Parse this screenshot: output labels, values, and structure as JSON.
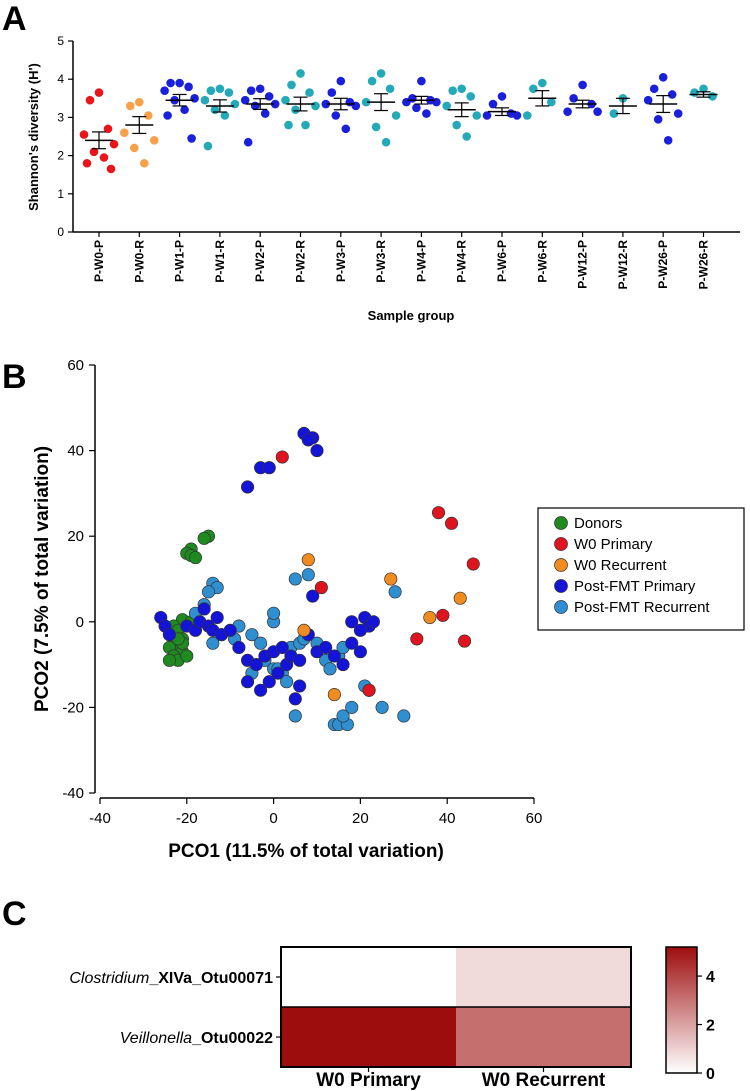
{
  "figure_labels": {
    "a": "A",
    "b": "B",
    "c": "C"
  },
  "colors": {
    "red": "#e8161b",
    "orange": "#f7a14a",
    "teal": "#23a9b8",
    "blue": "#1a1fd9",
    "green": "#1f8a1f",
    "redB": "#e0141e",
    "orangeB": "#f08c1f",
    "blueB": "#1414d9",
    "lightblueB": "#2f8fd0",
    "heatmax": "#9e0d0d"
  },
  "chart_data": [
    {
      "type": "scatter",
      "title": "A",
      "xlabel": "Sample group",
      "ylabel": "Shannon's diversity (H')",
      "ylim": [
        0,
        5
      ],
      "yticks": [
        "0",
        "1",
        "2",
        "3",
        "4",
        "5"
      ],
      "groups": [
        {
          "name": "P-W0-P",
          "color": "red",
          "mean": 2.4,
          "sem": 0.22,
          "values": [
            3.65,
            3.45,
            2.7,
            2.55,
            2.3,
            2.1,
            1.95,
            1.8,
            1.65
          ]
        },
        {
          "name": "P-W0-R",
          "color": "orange",
          "mean": 2.8,
          "sem": 0.22,
          "values": [
            3.4,
            3.3,
            3.05,
            2.6,
            2.4,
            2.2,
            1.8
          ]
        },
        {
          "name": "P-W1-P",
          "color": "blue",
          "mean": 3.45,
          "sem": 0.15,
          "values": [
            3.9,
            3.9,
            3.8,
            3.7,
            3.5,
            3.45,
            3.2,
            3.05,
            2.45
          ]
        },
        {
          "name": "P-W1-R",
          "color": "teal",
          "mean": 3.3,
          "sem": 0.16,
          "values": [
            3.75,
            3.7,
            3.65,
            3.45,
            3.35,
            3.2,
            3.05,
            2.25
          ]
        },
        {
          "name": "P-W2-P",
          "color": "blue",
          "mean": 3.35,
          "sem": 0.14,
          "values": [
            3.75,
            3.7,
            3.55,
            3.45,
            3.35,
            3.3,
            3.1,
            2.35
          ]
        },
        {
          "name": "P-W2-R",
          "color": "teal",
          "mean": 3.35,
          "sem": 0.18,
          "values": [
            4.15,
            3.85,
            3.65,
            3.45,
            3.3,
            3.2,
            2.8,
            2.8
          ]
        },
        {
          "name": "P-W3-P",
          "color": "blue",
          "mean": 3.35,
          "sem": 0.15,
          "values": [
            3.95,
            3.65,
            3.4,
            3.35,
            3.3,
            3.05,
            2.7
          ]
        },
        {
          "name": "P-W3-R",
          "color": "teal",
          "mean": 3.4,
          "sem": 0.22,
          "values": [
            4.15,
            3.95,
            3.75,
            3.4,
            3.05,
            2.75,
            2.35
          ]
        },
        {
          "name": "P-W4-P",
          "color": "blue",
          "mean": 3.45,
          "sem": 0.1,
          "values": [
            3.95,
            3.5,
            3.45,
            3.4,
            3.4,
            3.25,
            3.1
          ]
        },
        {
          "name": "P-W4-R",
          "color": "teal",
          "mean": 3.2,
          "sem": 0.18,
          "values": [
            3.75,
            3.7,
            3.55,
            3.3,
            3.05,
            2.8,
            2.5
          ]
        },
        {
          "name": "P-W6-P",
          "color": "blue",
          "mean": 3.15,
          "sem": 0.1,
          "values": [
            3.55,
            3.35,
            3.1,
            3.05,
            3.05
          ]
        },
        {
          "name": "P-W6-R",
          "color": "teal",
          "mean": 3.5,
          "sem": 0.2,
          "values": [
            3.9,
            3.75,
            3.4,
            3.05
          ]
        },
        {
          "name": "P-W12-P",
          "color": "blue",
          "mean": 3.35,
          "sem": 0.1,
          "values": [
            3.85,
            3.5,
            3.35,
            3.15,
            3.15
          ]
        },
        {
          "name": "P-W12-R",
          "color": "teal",
          "mean": 3.3,
          "sem": 0.2,
          "values": [
            3.5,
            3.1
          ]
        },
        {
          "name": "P-W26-P",
          "color": "blue",
          "mean": 3.35,
          "sem": 0.22,
          "values": [
            4.05,
            3.75,
            3.6,
            3.45,
            3.1,
            2.95,
            2.4
          ]
        },
        {
          "name": "P-W26-R",
          "color": "teal",
          "mean": 3.6,
          "sem": 0.07,
          "values": [
            3.75,
            3.65,
            3.55
          ]
        }
      ]
    },
    {
      "type": "scatter",
      "title": "B",
      "xlabel": "PCO1 (11.5% of total variation)",
      "ylabel": "PCO2 (7.5% of total variation)",
      "xlim": [
        -40,
        60
      ],
      "ylim": [
        -40,
        60
      ],
      "xticks": [
        "-40",
        "-20",
        "0",
        "20",
        "40",
        "60"
      ],
      "yticks": [
        "-40",
        "-20",
        "0",
        "20",
        "40",
        "60"
      ],
      "legend_position": "right",
      "series": [
        {
          "name": "Donors",
          "color": "green",
          "points": [
            [
              -15,
              20
            ],
            [
              -16,
              19.5
            ],
            [
              -19,
              17
            ],
            [
              -20,
              16
            ],
            [
              -19,
              15.5
            ],
            [
              -18,
              15
            ],
            [
              -21,
              0.5
            ],
            [
              -19,
              0
            ],
            [
              -23,
              -1
            ],
            [
              -22,
              -2
            ],
            [
              -24,
              -3
            ],
            [
              -21,
              -4
            ],
            [
              -23,
              -5
            ],
            [
              -22,
              -6
            ],
            [
              -24,
              -6
            ],
            [
              -21,
              -7
            ],
            [
              -23,
              -8
            ],
            [
              -22,
              -9
            ],
            [
              -24,
              -9
            ],
            [
              -20,
              -8
            ],
            [
              -21,
              -5
            ],
            [
              -22,
              -4
            ]
          ]
        },
        {
          "name": "W0 Primary",
          "color": "red",
          "points": [
            [
              2,
              38.5
            ],
            [
              38,
              25.5
            ],
            [
              41,
              23
            ],
            [
              46,
              13.5
            ],
            [
              11,
              8
            ],
            [
              39,
              1.5
            ],
            [
              33,
              -4
            ],
            [
              44,
              -4.5
            ],
            [
              22,
              -16
            ]
          ]
        },
        {
          "name": "W0 Recurrent",
          "color": "orange",
          "points": [
            [
              8,
              14.5
            ],
            [
              27,
              10
            ],
            [
              43,
              5.5
            ],
            [
              36,
              1
            ],
            [
              7,
              -2
            ],
            [
              14,
              -17
            ]
          ]
        },
        {
          "name": "Post-FMT Primary",
          "color": "blue",
          "points": [
            [
              7,
              44
            ],
            [
              9,
              43
            ],
            [
              8,
              42.5
            ],
            [
              10,
              40
            ],
            [
              -3,
              36
            ],
            [
              -1,
              36
            ],
            [
              -6,
              31.5
            ],
            [
              -26,
              1
            ],
            [
              -25,
              -1
            ],
            [
              -24,
              -3
            ],
            [
              -20,
              -1
            ],
            [
              -18,
              -2
            ],
            [
              -17,
              0
            ],
            [
              -16,
              3
            ],
            [
              -15,
              -1
            ],
            [
              -13,
              1
            ],
            [
              -14,
              -2
            ],
            [
              -12,
              -3
            ],
            [
              -10,
              -2
            ],
            [
              -8,
              -6
            ],
            [
              -6,
              -9
            ],
            [
              -4,
              -10
            ],
            [
              -2,
              -8
            ],
            [
              0,
              -7
            ],
            [
              2,
              -6
            ],
            [
              3,
              -10
            ],
            [
              1,
              -12
            ],
            [
              -1,
              -14
            ],
            [
              -3,
              -16
            ],
            [
              -6,
              -14
            ],
            [
              4,
              -8
            ],
            [
              6,
              -9
            ],
            [
              8,
              -3
            ],
            [
              10,
              -7
            ],
            [
              12,
              -6
            ],
            [
              14,
              -8
            ],
            [
              16,
              -10
            ],
            [
              18,
              -5
            ],
            [
              20,
              -7
            ],
            [
              21,
              1
            ],
            [
              22,
              -1
            ],
            [
              23,
              0
            ],
            [
              18,
              0
            ],
            [
              20,
              -2
            ],
            [
              6,
              -15
            ],
            [
              5,
              -18
            ],
            [
              9,
              6
            ]
          ]
        },
        {
          "name": "Post-FMT Recurrent",
          "color": "lightblue",
          "points": [
            [
              -14,
              9
            ],
            [
              -13,
              8
            ],
            [
              -15,
              7
            ],
            [
              -16,
              4
            ],
            [
              -18,
              2
            ],
            [
              -14,
              -5
            ],
            [
              -12,
              -3
            ],
            [
              -9,
              -4
            ],
            [
              -8,
              -1
            ],
            [
              -5,
              -3
            ],
            [
              -3,
              -5
            ],
            [
              -2,
              -9
            ],
            [
              0,
              -11
            ],
            [
              2,
              -12
            ],
            [
              4,
              -6
            ],
            [
              6,
              -5
            ],
            [
              7,
              -4
            ],
            [
              5,
              10
            ],
            [
              8,
              11
            ],
            [
              10,
              -5
            ],
            [
              12,
              -9
            ],
            [
              13,
              -11
            ],
            [
              15,
              -8
            ],
            [
              16,
              -6
            ],
            [
              14,
              -24
            ],
            [
              15,
              -24
            ],
            [
              17,
              -24
            ],
            [
              16,
              -22
            ],
            [
              18,
              -20
            ],
            [
              21,
              -15
            ],
            [
              22,
              -16
            ],
            [
              25,
              -20
            ],
            [
              30,
              -22
            ],
            [
              0,
              0
            ],
            [
              0,
              2
            ],
            [
              -5,
              -12
            ],
            [
              3,
              -14
            ],
            [
              5,
              -22
            ],
            [
              1,
              -11
            ],
            [
              28,
              7
            ]
          ]
        }
      ]
    },
    {
      "type": "heatmap",
      "title": "C",
      "columns": [
        "W0 Primary",
        "W0 Recurrent"
      ],
      "rows": [
        {
          "italic": "Clostridium",
          "rest": "_XIVa_Otu00071",
          "values": [
            0,
            0.8
          ]
        },
        {
          "italic": "Veillonella",
          "rest": "_Otu00022",
          "values": [
            5.2,
            3.1
          ]
        }
      ],
      "colorbar_ticks": [
        "0",
        "2",
        "4"
      ],
      "colorbar_range": [
        0,
        5.2
      ]
    }
  ]
}
